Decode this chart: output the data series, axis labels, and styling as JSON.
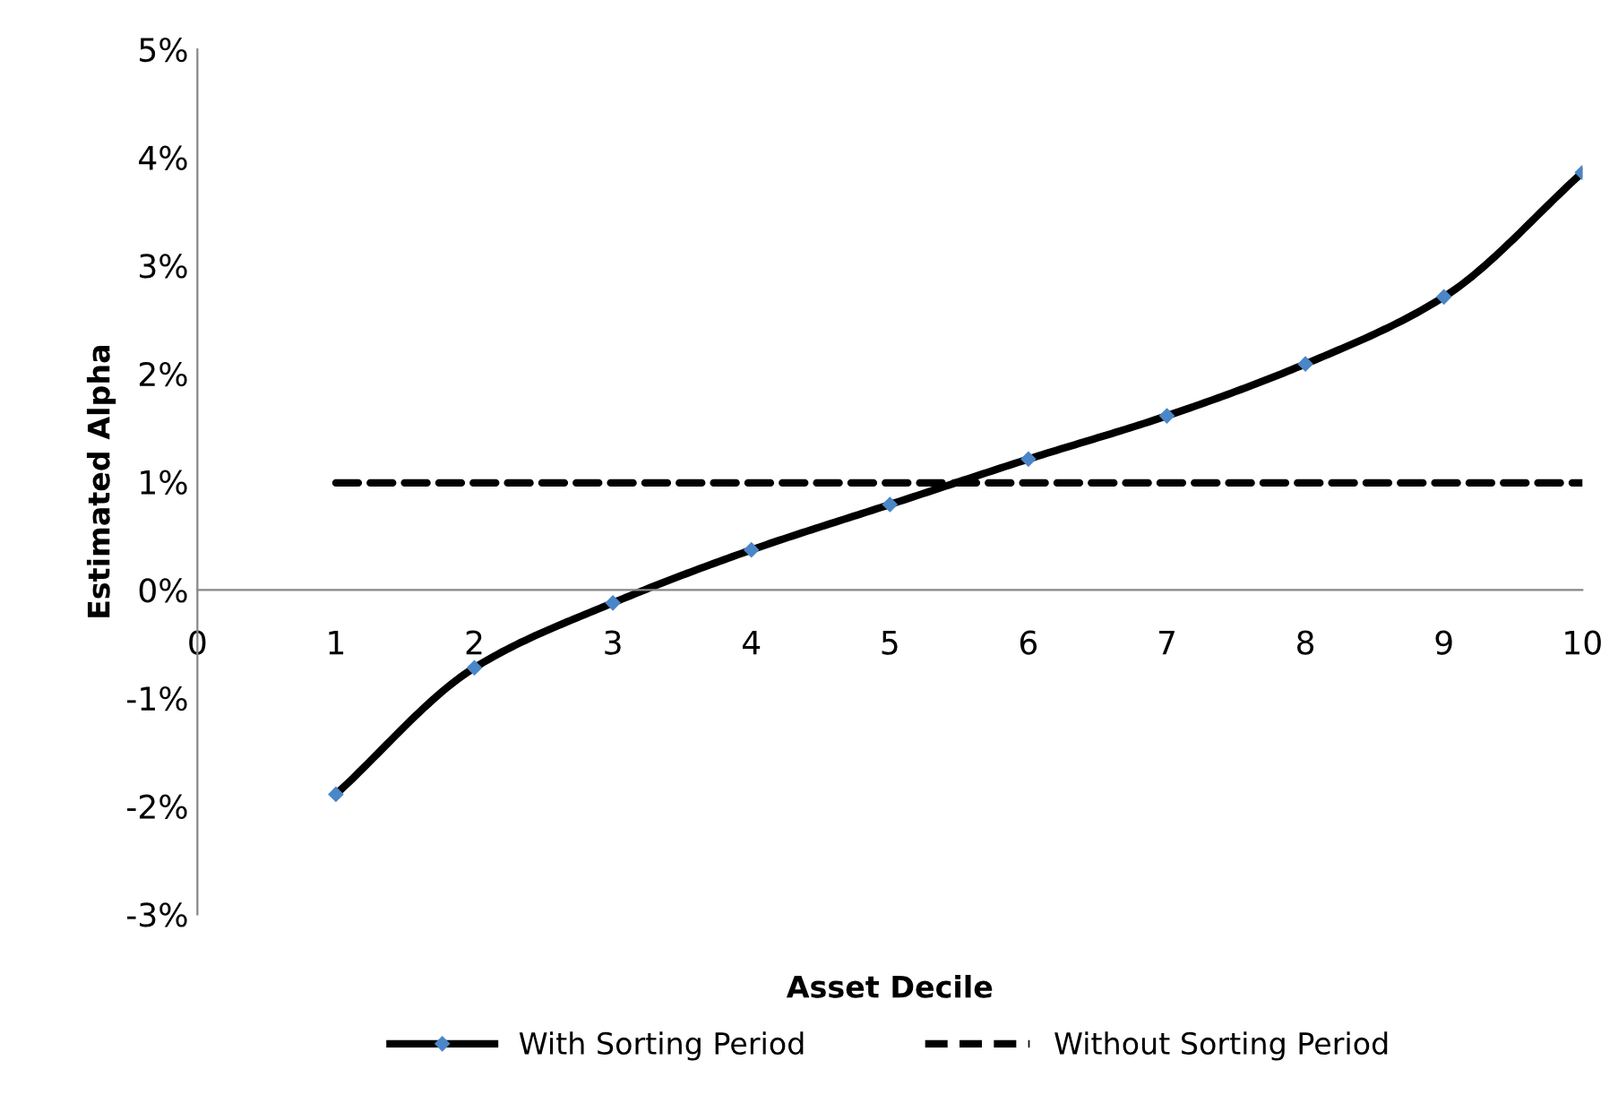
{
  "chart_data": {
    "type": "line",
    "xlabel": "Asset Decile",
    "ylabel": "Estimated Alpha",
    "x": [
      1,
      2,
      3,
      4,
      5,
      6,
      7,
      8,
      9,
      10
    ],
    "series": [
      {
        "name": "With Sorting Period",
        "color": "#000000",
        "marker": "diamond",
        "line_style": "solid",
        "values": [
          -1.89,
          -0.72,
          -0.12,
          0.37,
          0.79,
          1.21,
          1.61,
          2.09,
          2.71,
          3.86
        ]
      },
      {
        "name": "Without Sorting Period",
        "color": "#000000",
        "marker": "none",
        "line_style": "dashed",
        "values": [
          0.99,
          0.99,
          0.99,
          0.99,
          0.99,
          0.99,
          0.99,
          0.99,
          0.99,
          0.99
        ]
      }
    ],
    "xlim": [
      0,
      10
    ],
    "xticks": [
      0,
      1,
      2,
      3,
      4,
      5,
      6,
      7,
      8,
      9,
      10
    ],
    "ylim": [
      -3,
      5
    ],
    "yticks": [
      {
        "value": -3,
        "label": "-3%"
      },
      {
        "value": -2,
        "label": "-2%"
      },
      {
        "value": -1,
        "label": "-1%"
      },
      {
        "value": 0,
        "label": "0%"
      },
      {
        "value": 1,
        "label": "1%"
      },
      {
        "value": 2,
        "label": "2%"
      },
      {
        "value": 3,
        "label": "3%"
      },
      {
        "value": 4,
        "label": "4%"
      },
      {
        "value": 5,
        "label": "5%"
      }
    ],
    "grid": false,
    "legend": "bottom"
  }
}
